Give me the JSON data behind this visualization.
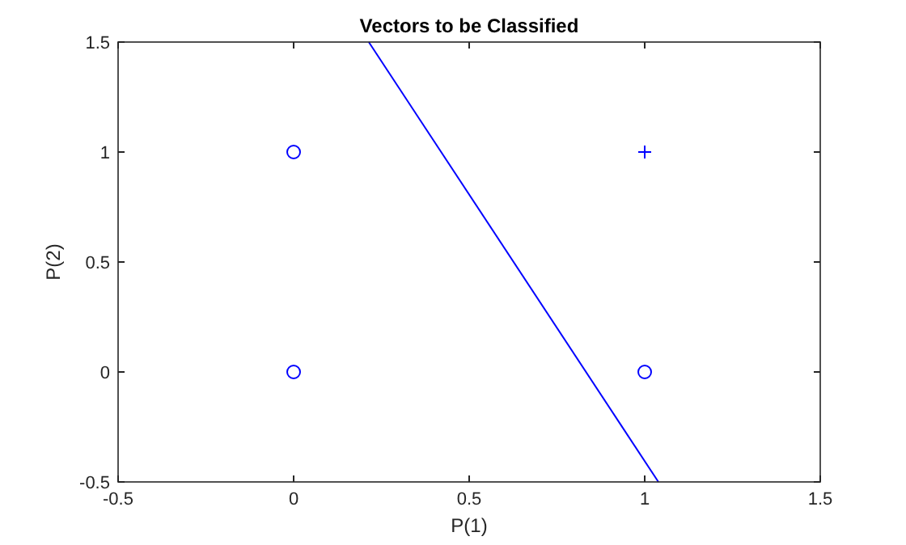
{
  "chart_data": {
    "type": "scatter",
    "title": "Vectors to be Classified",
    "xlabel": "P(1)",
    "ylabel": "P(2)",
    "xlim": [
      -0.5,
      1.5
    ],
    "ylim": [
      -0.5,
      1.5
    ],
    "xticks": [
      -0.5,
      0,
      0.5,
      1,
      1.5
    ],
    "yticks": [
      -0.5,
      0,
      0.5,
      1,
      1.5
    ],
    "grid": false,
    "series": [
      {
        "marker": "circle",
        "color": "#0000ff",
        "x": [
          0,
          0,
          1
        ],
        "values": [
          0,
          1,
          0
        ]
      },
      {
        "marker": "cross",
        "color": "#0000ff",
        "x": [
          1
        ],
        "values": [
          1
        ]
      },
      {
        "type": "line",
        "marker": "none",
        "line_style": "solid",
        "color": "#0000ff",
        "x": [
          0.214,
          1.039
        ],
        "values": [
          1.5,
          -0.5
        ]
      }
    ]
  }
}
